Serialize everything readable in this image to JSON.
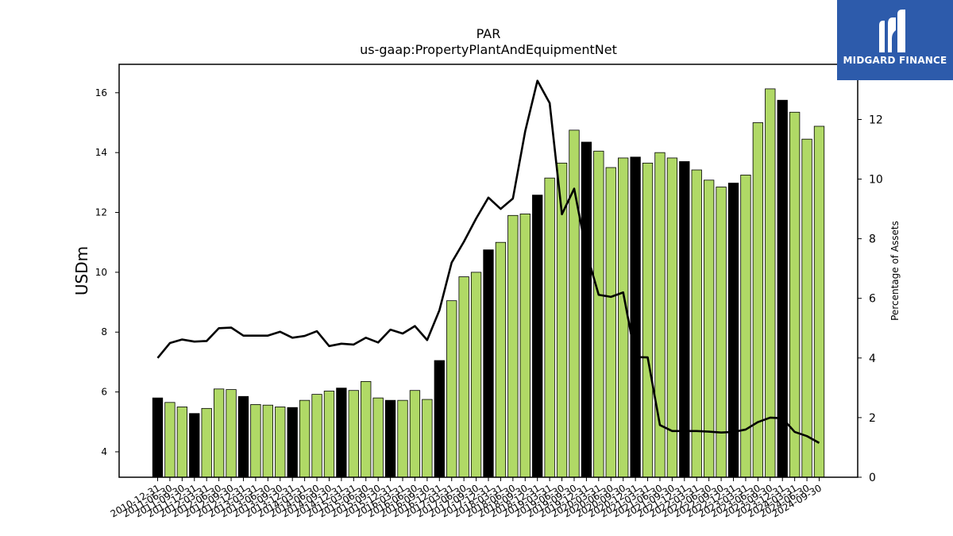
{
  "chart_data": {
    "type": "bar+line",
    "title": "PAR",
    "subtitle": "us-gaap:PropertyPlantAndEquipmentNet",
    "ylabel": "USDm",
    "y2label": "Percentage of Assets",
    "ylim": [
      3.15,
      16.95
    ],
    "y2lim": [
      0,
      13.85
    ],
    "yticks": [
      4,
      6,
      8,
      10,
      12,
      14,
      16
    ],
    "y2ticks": [
      0,
      2,
      4,
      6,
      8,
      10,
      12
    ],
    "categories": [
      "2010-12-31",
      "2011-06-30",
      "2011-09-30",
      "2011-12-31",
      "2012-03-31",
      "2012-06-30",
      "2012-09-30",
      "2012-12-31",
      "2013-03-31",
      "2013-06-30",
      "2013-09-30",
      "2013-12-31",
      "2014-03-31",
      "2014-06-30",
      "2014-09-30",
      "2014-12-31",
      "2015-03-31",
      "2015-06-30",
      "2015-09-30",
      "2015-12-31",
      "2016-03-31",
      "2016-06-30",
      "2016-09-30",
      "2016-12-31",
      "2017-03-31",
      "2017-06-30",
      "2017-09-30",
      "2017-12-31",
      "2018-03-31",
      "2018-06-30",
      "2018-09-30",
      "2018-12-31",
      "2019-03-31",
      "2019-06-30",
      "2019-09-30",
      "2019-12-31",
      "2020-03-31",
      "2020-06-30",
      "2020-09-30",
      "2020-12-31",
      "2021-03-31",
      "2021-06-30",
      "2021-09-30",
      "2021-12-31",
      "2022-03-31",
      "2022-06-30",
      "2022-09-30",
      "2022-12-31",
      "2023-03-31",
      "2023-06-30",
      "2023-09-30",
      "2023-12-31",
      "2024-03-31",
      "2024-06-30",
      "2024-09-30"
    ],
    "values": [
      5.8,
      5.65,
      5.5,
      5.28,
      5.45,
      6.1,
      6.08,
      5.85,
      5.58,
      5.56,
      5.5,
      5.48,
      5.72,
      5.92,
      6.03,
      6.13,
      6.05,
      6.35,
      5.8,
      5.72,
      5.72,
      6.05,
      5.75,
      7.05,
      9.05,
      9.85,
      10.0,
      10.75,
      11.0,
      11.9,
      11.95,
      12.58,
      13.15,
      13.65,
      14.75,
      14.35,
      14.05,
      13.5,
      13.82,
      13.85,
      13.65,
      14.0,
      13.82,
      13.7,
      13.42,
      13.08,
      12.85,
      12.98,
      13.25,
      15.0,
      16.13,
      15.75,
      15.35,
      14.45,
      14.88
    ],
    "highlight": [
      true,
      false,
      false,
      true,
      false,
      false,
      false,
      true,
      false,
      false,
      false,
      true,
      false,
      false,
      false,
      true,
      false,
      false,
      false,
      true,
      false,
      false,
      false,
      true,
      false,
      false,
      false,
      true,
      false,
      false,
      false,
      true,
      false,
      false,
      false,
      true,
      false,
      false,
      false,
      true,
      false,
      false,
      false,
      true,
      false,
      false,
      false,
      true,
      false,
      false,
      false,
      true,
      false,
      false,
      false
    ],
    "pct_assets": [
      4.0,
      4.5,
      4.62,
      4.55,
      4.57,
      5.0,
      5.02,
      4.75,
      4.75,
      4.75,
      4.88,
      4.68,
      4.74,
      4.9,
      4.4,
      4.48,
      4.45,
      4.68,
      4.52,
      4.95,
      4.82,
      5.07,
      4.6,
      5.6,
      7.2,
      7.9,
      8.68,
      9.38,
      9.0,
      9.35,
      11.6,
      13.3,
      12.55,
      8.82,
      9.68,
      7.55,
      6.12,
      6.05,
      6.2,
      4.03,
      4.02,
      1.75,
      1.55,
      1.55,
      1.55,
      1.53,
      1.5,
      1.52,
      1.6,
      1.85,
      2.0,
      1.98,
      1.52,
      1.38,
      1.15
    ],
    "colors": {
      "bar": "#b0d966",
      "bar_highlight": "#000000",
      "line": "#000000"
    }
  },
  "logo": {
    "text": "MIDGARD FINANCE",
    "icon": "midgard-m-icon",
    "color": "#2d5bab"
  }
}
